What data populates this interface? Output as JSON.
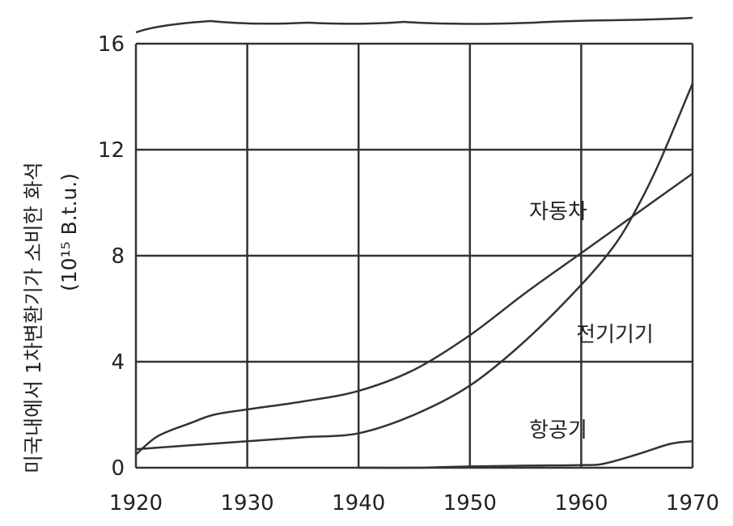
{
  "chart_data": {
    "type": "line",
    "ylabel": "미국내에서 1차변환기가 소비한 화석",
    "yunit": "(10¹⁵ B.t.u.)",
    "xlim": [
      1920,
      1970
    ],
    "ylim": [
      0,
      16
    ],
    "xticks": [
      "1920",
      "1930",
      "1940",
      "1950",
      "1960",
      "1970"
    ],
    "yticks": [
      "0",
      "4",
      "8",
      "12",
      "16"
    ],
    "grid": true,
    "series": [
      {
        "name": "자동차",
        "x": [
          1920,
          1922,
          1925,
          1927,
          1930,
          1935,
          1940,
          1945,
          1950,
          1955,
          1960,
          1965,
          1970
        ],
        "y": [
          0.5,
          1.2,
          1.7,
          2.0,
          2.2,
          2.5,
          2.9,
          3.7,
          5.0,
          6.6,
          8.1,
          9.6,
          11.1
        ]
      },
      {
        "name": "전기기기",
        "x": [
          1920,
          1925,
          1930,
          1935,
          1940,
          1945,
          1950,
          1955,
          1960,
          1963,
          1965,
          1967,
          1970
        ],
        "y": [
          0.7,
          0.85,
          1.0,
          1.15,
          1.3,
          2.0,
          3.1,
          4.8,
          6.9,
          8.4,
          9.8,
          11.5,
          14.5
        ]
      },
      {
        "name": "항공기",
        "x": [
          1940,
          1945,
          1950,
          1955,
          1960,
          1962,
          1965,
          1968,
          1970
        ],
        "y": [
          0.0,
          0.0,
          0.05,
          0.08,
          0.1,
          0.15,
          0.5,
          0.9,
          1.0
        ]
      }
    ],
    "annotations": [
      {
        "text": "자동차",
        "series": 0
      },
      {
        "text": "전기기기",
        "series": 1
      },
      {
        "text": "항공기",
        "series": 2
      }
    ]
  }
}
